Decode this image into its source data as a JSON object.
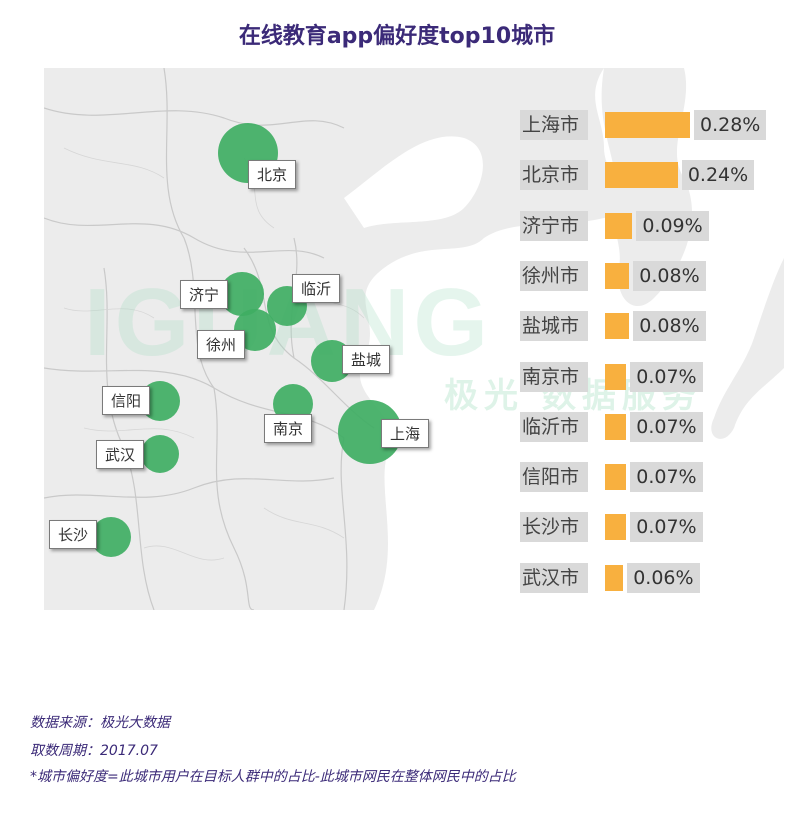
{
  "title": "在线教育app偏好度top10城市",
  "watermark": {
    "brand": "IGUANG",
    "sub": "极光 数据服务"
  },
  "colors": {
    "title": "#3b2a78",
    "bubble": "#3fae63",
    "bar": "#f8b03f",
    "map_land": "#ececec"
  },
  "map": {
    "markers": [
      {
        "city": "北京",
        "value": 0.24
      },
      {
        "city": "济宁",
        "value": 0.09
      },
      {
        "city": "临沂",
        "value": 0.07
      },
      {
        "city": "徐州",
        "value": 0.08
      },
      {
        "city": "盐城",
        "value": 0.08
      },
      {
        "city": "信阳",
        "value": 0.07
      },
      {
        "city": "南京",
        "value": 0.07
      },
      {
        "city": "上海",
        "value": 0.28
      },
      {
        "city": "武汉",
        "value": 0.06
      },
      {
        "city": "长沙",
        "value": 0.07
      }
    ]
  },
  "chart_data": {
    "type": "bar",
    "orientation": "horizontal",
    "categories": [
      "上海市",
      "北京市",
      "济宁市",
      "徐州市",
      "盐城市",
      "南京市",
      "临沂市",
      "信阳市",
      "长沙市",
      "武汉市"
    ],
    "values": [
      0.28,
      0.24,
      0.09,
      0.08,
      0.08,
      0.07,
      0.07,
      0.07,
      0.07,
      0.06
    ],
    "value_labels": [
      "0.28%",
      "0.24%",
      "0.09%",
      "0.08%",
      "0.08%",
      "0.07%",
      "0.07%",
      "0.07%",
      "0.07%",
      "0.06%"
    ],
    "unit": "%"
  },
  "footer": {
    "source": "数据来源：极光大数据",
    "period": "取数周期：2017.07",
    "note": "*城市偏好度=此城市用户在目标人群中的占比-此城市网民在整体网民中的占比"
  }
}
